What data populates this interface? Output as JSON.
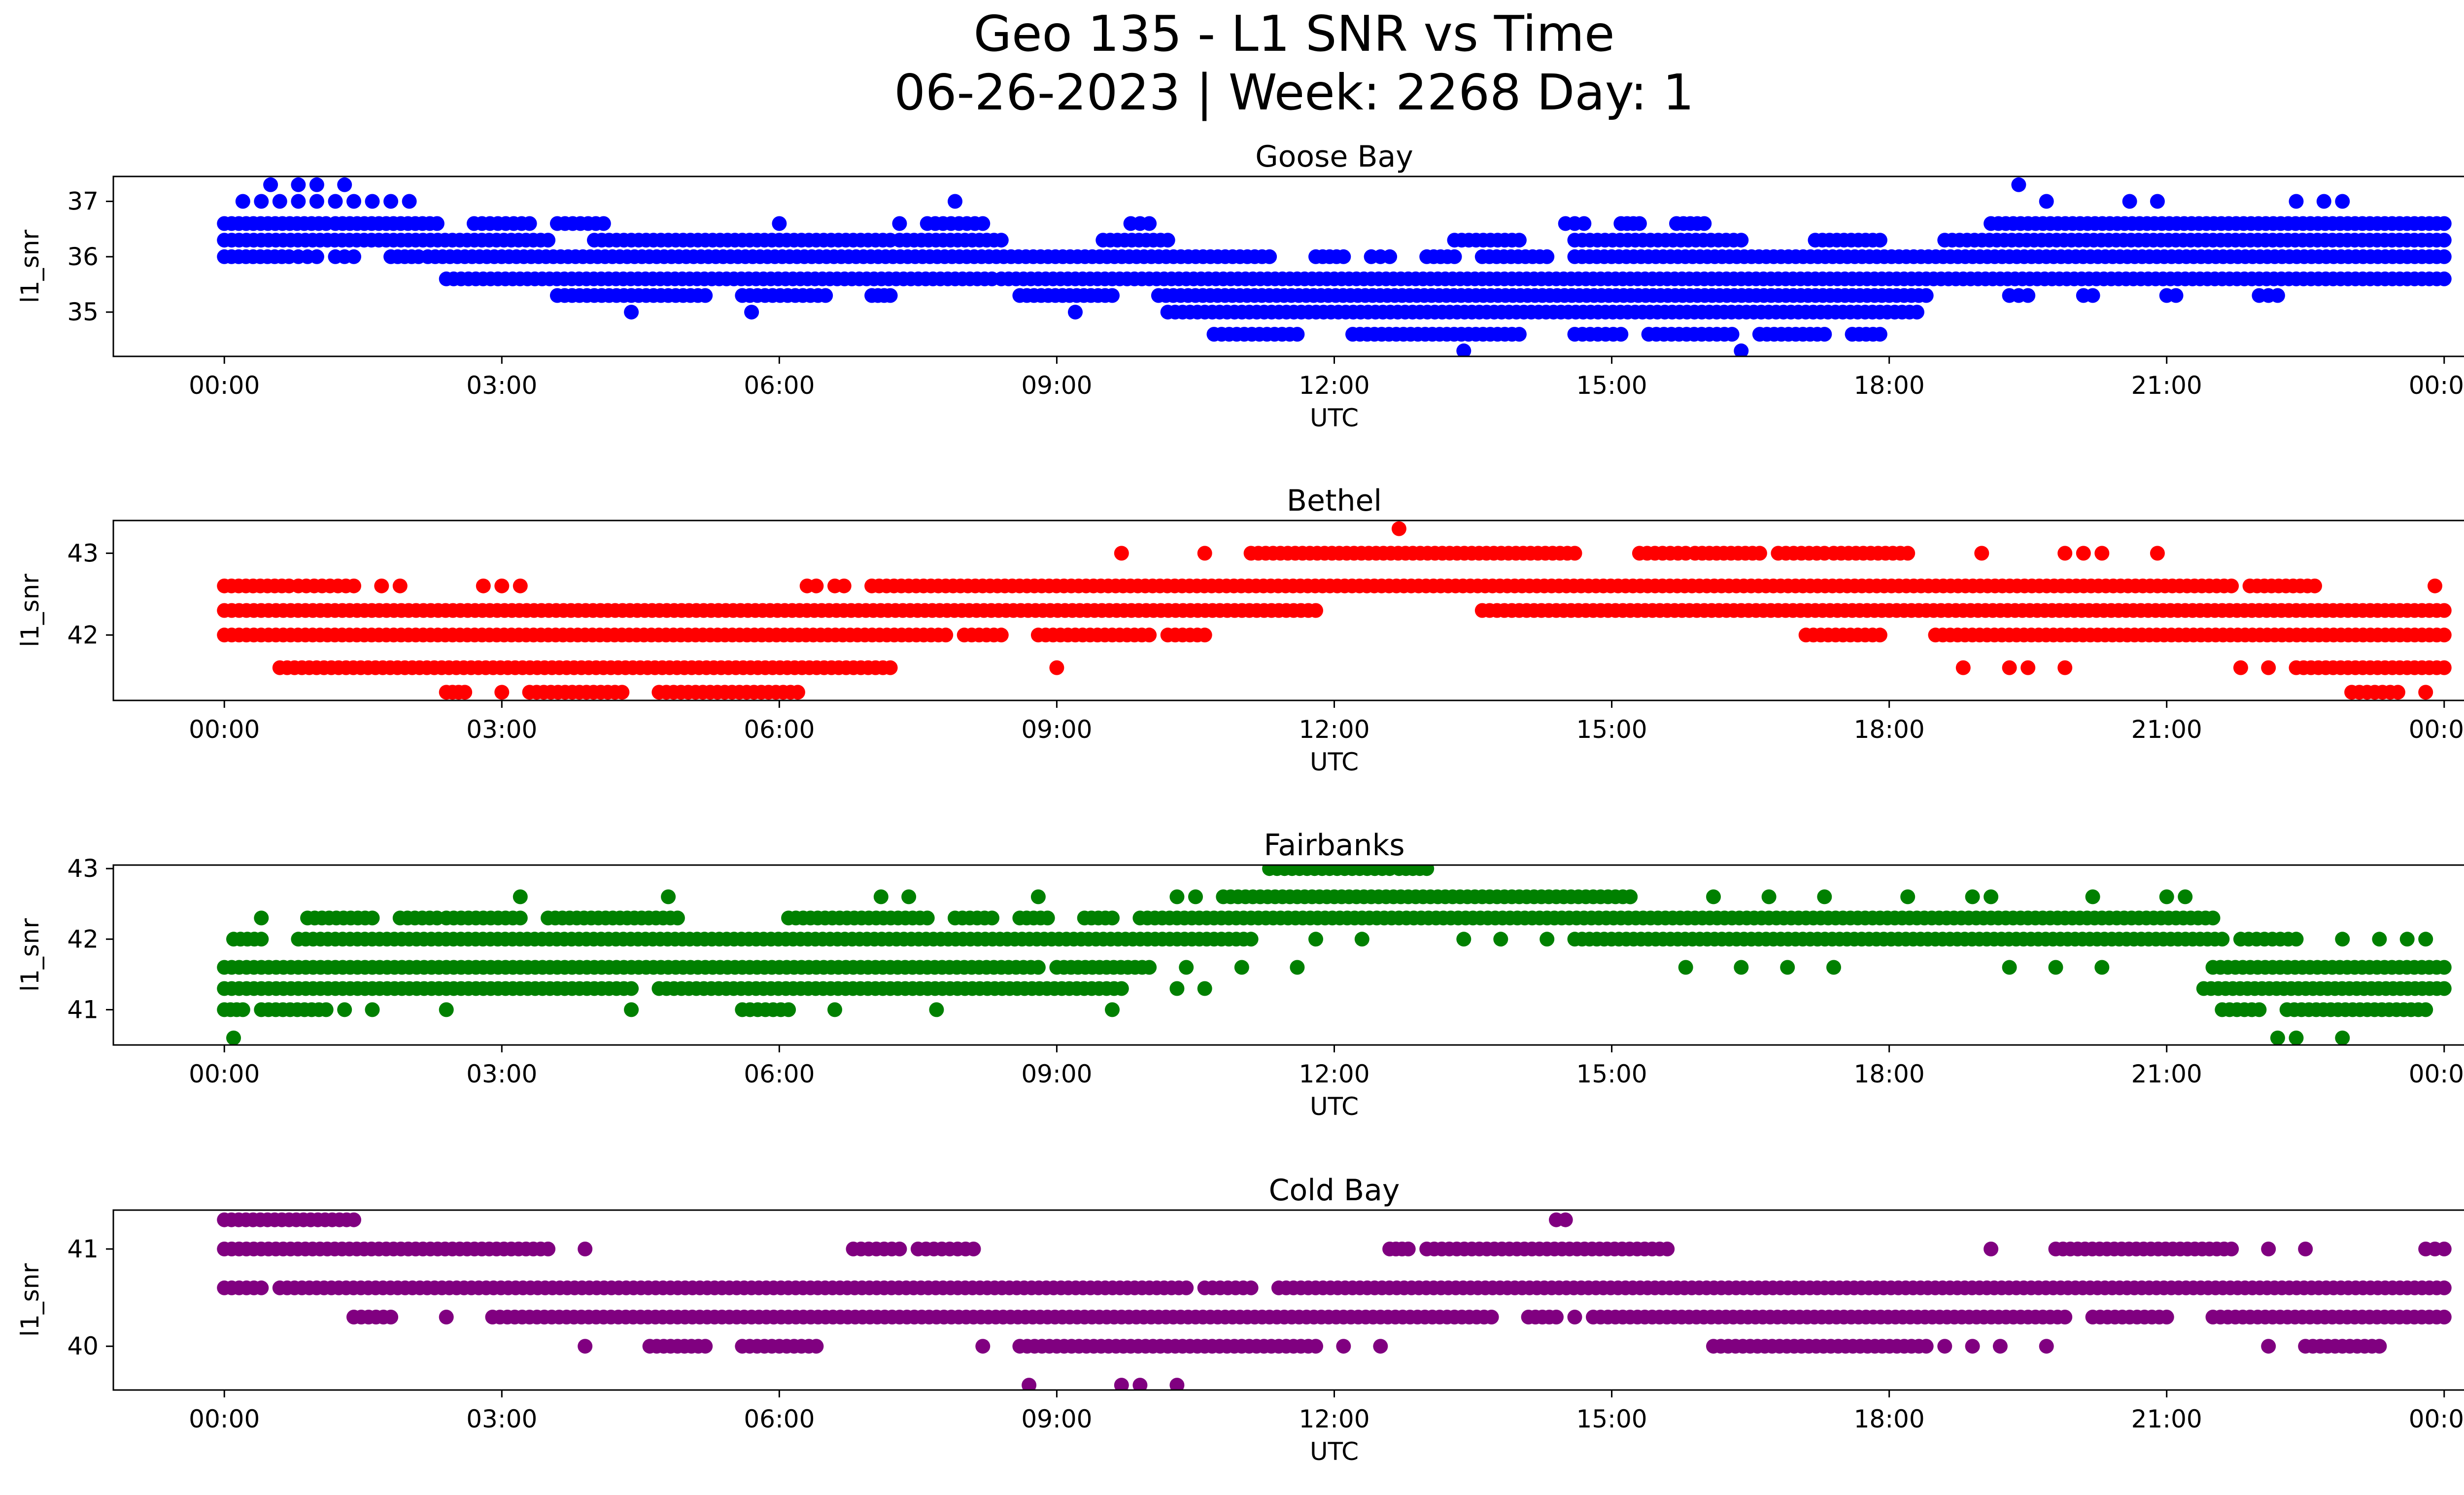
{
  "figure": {
    "title_line1": "Geo 135 - L1 SNR vs Time",
    "title_line2": "06-26-2023 | Week: 2268 Day: 1"
  },
  "chart_data": [
    {
      "type": "scatter",
      "title": "Goose Bay",
      "xlabel": "UTC",
      "ylabel": "l1_snr",
      "color": "#0000ff",
      "x_unit": "hours UTC",
      "xlim": [
        -1.2,
        25.2
      ],
      "ylim": [
        34.2,
        37.45
      ],
      "x_tick_values": [
        0,
        3,
        6,
        9,
        12,
        15,
        18,
        21,
        24
      ],
      "x_tick_labels": [
        "00:00",
        "03:00",
        "06:00",
        "09:00",
        "12:00",
        "15:00",
        "18:00",
        "21:00",
        "00:00"
      ],
      "y_tick_values": [
        35,
        36,
        37
      ],
      "y_tick_labels": [
        "35",
        "36",
        "37"
      ],
      "bands": [
        {
          "y": 36.6,
          "x": [
            0.0,
            1.1,
            1.2,
            2.3,
            2.7,
            3.3,
            3.6,
            4.1,
            7.6,
            8.2,
            9.8,
            10.0,
            14.5,
            14.7,
            15.1,
            15.3,
            15.7,
            16.0,
            19.1,
            24.0
          ]
        },
        {
          "y": 36.3,
          "x": [
            0.0,
            3.5,
            4.0,
            7.2,
            7.3,
            8.4,
            9.5,
            10.2,
            13.3,
            14.0,
            14.6,
            16.4,
            17.2,
            17.9,
            18.6,
            24.0
          ]
        },
        {
          "y": 36.0,
          "x": [
            0.0,
            0.7,
            0.8,
            1.0,
            1.2,
            1.4,
            1.8,
            2.1,
            2.2,
            11.3,
            11.8,
            12.1,
            12.4,
            12.6,
            13.0,
            13.3,
            13.6,
            14.3,
            14.6,
            24.0
          ]
        },
        {
          "y": 35.6,
          "x": [
            2.4,
            8.3,
            8.4,
            24.0
          ]
        },
        {
          "y": 35.3,
          "x": [
            3.6,
            5.2,
            5.6,
            6.5,
            7.0,
            7.2,
            8.6,
            9.6,
            10.1,
            18.4,
            19.3,
            19.5,
            20.1,
            20.2,
            21.0,
            21.1,
            22.0,
            22.2,
            24.0
          ]
        },
        {
          "y": 35.0,
          "x": [
            10.2,
            18.3
          ]
        },
        {
          "y": 34.6,
          "x": [
            10.7,
            11.6,
            12.2,
            14.0,
            14.6,
            15.1,
            15.4,
            16.3,
            16.6,
            17.3,
            17.6,
            17.9
          ]
        }
      ],
      "points": [
        [
          0.5,
          37.3
        ],
        [
          0.8,
          37.3
        ],
        [
          1.0,
          37.3
        ],
        [
          1.3,
          37.3
        ],
        [
          0.2,
          37.0
        ],
        [
          0.4,
          37.0
        ],
        [
          0.6,
          37.0
        ],
        [
          0.8,
          37.0
        ],
        [
          1.0,
          37.0
        ],
        [
          1.2,
          37.0
        ],
        [
          1.4,
          37.0
        ],
        [
          1.6,
          37.0
        ],
        [
          1.8,
          37.0
        ],
        [
          2.0,
          37.0
        ],
        [
          7.9,
          37.0
        ],
        [
          6.0,
          36.6
        ],
        [
          7.3,
          36.6
        ],
        [
          19.4,
          37.3
        ],
        [
          19.7,
          37.0
        ],
        [
          20.6,
          37.0
        ],
        [
          20.9,
          37.0
        ],
        [
          22.4,
          37.0
        ],
        [
          22.7,
          37.0
        ],
        [
          22.9,
          37.0
        ],
        [
          4.4,
          35.0
        ],
        [
          5.7,
          35.0
        ],
        [
          9.2,
          35.0
        ],
        [
          13.4,
          34.3
        ],
        [
          16.4,
          34.3
        ]
      ]
    },
    {
      "type": "scatter",
      "title": "Bethel",
      "xlabel": "UTC",
      "ylabel": "l1_snr",
      "color": "#ff0000",
      "x_unit": "hours UTC",
      "xlim": [
        -1.2,
        25.2
      ],
      "ylim": [
        41.2,
        43.4
      ],
      "x_tick_values": [
        0,
        3,
        6,
        9,
        12,
        15,
        18,
        21,
        24
      ],
      "x_tick_labels": [
        "00:00",
        "03:00",
        "06:00",
        "09:00",
        "12:00",
        "15:00",
        "18:00",
        "21:00",
        "00:00"
      ],
      "y_tick_values": [
        42,
        43
      ],
      "y_tick_labels": [
        "42",
        "43"
      ],
      "bands": [
        {
          "y": 43.0,
          "x": [
            11.1,
            14.6,
            15.3,
            15.8,
            15.9,
            16.6,
            16.8,
            17.3,
            17.4,
            18.2
          ]
        },
        {
          "y": 42.6,
          "x": [
            0.0,
            0.7,
            0.8,
            1.4,
            6.3,
            6.4,
            6.6,
            6.7,
            7.0,
            21.7,
            21.9,
            22.6
          ]
        },
        {
          "y": 42.3,
          "x": [
            0.0,
            11.8,
            13.6,
            24.0
          ]
        },
        {
          "y": 42.0,
          "x": [
            0.0,
            7.8,
            8.0,
            8.4,
            8.8,
            10.0,
            10.2,
            10.6,
            17.1,
            17.9,
            18.5,
            24.0
          ]
        },
        {
          "y": 41.6,
          "x": [
            0.6,
            7.2,
            22.4,
            24.0
          ]
        },
        {
          "y": 41.3,
          "x": [
            2.4,
            2.6,
            3.3,
            4.3,
            4.7,
            6.2,
            23.0,
            23.5
          ]
        }
      ],
      "points": [
        [
          12.7,
          43.3
        ],
        [
          9.7,
          43.0
        ],
        [
          10.6,
          43.0
        ],
        [
          19.0,
          43.0
        ],
        [
          19.9,
          43.0
        ],
        [
          20.1,
          43.0
        ],
        [
          20.3,
          43.0
        ],
        [
          20.9,
          43.0
        ],
        [
          1.7,
          42.6
        ],
        [
          1.9,
          42.6
        ],
        [
          2.8,
          42.6
        ],
        [
          3.0,
          42.6
        ],
        [
          3.2,
          42.6
        ],
        [
          23.9,
          42.6
        ],
        [
          9.0,
          41.6
        ],
        [
          18.8,
          41.6
        ],
        [
          19.3,
          41.6
        ],
        [
          19.5,
          41.6
        ],
        [
          19.9,
          41.6
        ],
        [
          21.8,
          41.6
        ],
        [
          22.1,
          41.6
        ],
        [
          3.0,
          41.3
        ],
        [
          23.8,
          41.3
        ]
      ]
    },
    {
      "type": "scatter",
      "title": "Fairbanks",
      "xlabel": "UTC",
      "ylabel": "l1_snr",
      "color": "#008000",
      "x_unit": "hours UTC",
      "xlim": [
        -1.2,
        25.2
      ],
      "ylim": [
        40.5,
        43.05
      ],
      "x_tick_values": [
        0,
        3,
        6,
        9,
        12,
        15,
        18,
        21,
        24
      ],
      "x_tick_labels": [
        "00:00",
        "03:00",
        "06:00",
        "09:00",
        "12:00",
        "15:00",
        "18:00",
        "21:00",
        "00:00"
      ],
      "y_tick_values": [
        41,
        42,
        43
      ],
      "y_tick_labels": [
        "41",
        "42",
        "43"
      ],
      "bands": [
        {
          "y": 43.0,
          "x": [
            11.3,
            12.6,
            12.7,
            13.0
          ]
        },
        {
          "y": 42.6,
          "x": [
            10.8,
            15.2
          ]
        },
        {
          "y": 42.3,
          "x": [
            0.9,
            1.6,
            1.9,
            2.3,
            2.4,
            3.2,
            3.5,
            4.9,
            6.1,
            7.6,
            7.9,
            8.3,
            8.6,
            8.9,
            9.3,
            9.6,
            9.9,
            21.5
          ]
        },
        {
          "y": 42.0,
          "x": [
            0.1,
            0.4,
            0.8,
            11.1,
            14.6,
            21.6,
            21.8,
            22.4
          ]
        },
        {
          "y": 41.6,
          "x": [
            0.0,
            8.8,
            9.0,
            10.0,
            21.5,
            24.0
          ]
        },
        {
          "y": 41.3,
          "x": [
            0.0,
            4.4,
            4.7,
            9.7,
            21.4,
            24.0
          ]
        },
        {
          "y": 41.0,
          "x": [
            0.0,
            0.2,
            0.4,
            1.1,
            5.6,
            6.1,
            21.6,
            22.0,
            22.3,
            23.8
          ]
        }
      ],
      "points": [
        [
          10.3,
          42.6
        ],
        [
          10.5,
          42.6
        ],
        [
          15.2,
          42.6
        ],
        [
          16.1,
          42.6
        ],
        [
          16.7,
          42.6
        ],
        [
          17.3,
          42.6
        ],
        [
          18.2,
          42.6
        ],
        [
          18.9,
          42.6
        ],
        [
          19.1,
          42.6
        ],
        [
          20.2,
          42.6
        ],
        [
          21.0,
          42.6
        ],
        [
          21.2,
          42.6
        ],
        [
          3.2,
          42.6
        ],
        [
          4.8,
          42.6
        ],
        [
          7.1,
          42.6
        ],
        [
          7.4,
          42.6
        ],
        [
          8.8,
          42.6
        ],
        [
          0.4,
          42.3
        ],
        [
          11.8,
          42.0
        ],
        [
          12.3,
          42.0
        ],
        [
          13.4,
          42.0
        ],
        [
          13.8,
          42.0
        ],
        [
          14.3,
          42.0
        ],
        [
          22.9,
          42.0
        ],
        [
          23.3,
          42.0
        ],
        [
          23.6,
          42.0
        ],
        [
          23.8,
          42.0
        ],
        [
          10.4,
          41.6
        ],
        [
          11.0,
          41.6
        ],
        [
          11.6,
          41.6
        ],
        [
          15.8,
          41.6
        ],
        [
          16.4,
          41.6
        ],
        [
          16.9,
          41.6
        ],
        [
          17.4,
          41.6
        ],
        [
          19.3,
          41.6
        ],
        [
          19.8,
          41.6
        ],
        [
          20.3,
          41.6
        ],
        [
          10.3,
          41.3
        ],
        [
          10.6,
          41.3
        ],
        [
          1.3,
          41.0
        ],
        [
          1.6,
          41.0
        ],
        [
          2.4,
          41.0
        ],
        [
          4.4,
          41.0
        ],
        [
          6.6,
          41.0
        ],
        [
          7.7,
          41.0
        ],
        [
          9.6,
          41.0
        ],
        [
          0.1,
          40.6
        ],
        [
          22.2,
          40.6
        ],
        [
          22.4,
          40.6
        ],
        [
          22.9,
          40.6
        ]
      ]
    },
    {
      "type": "scatter",
      "title": "Cold Bay",
      "xlabel": "UTC",
      "ylabel": "l1_snr",
      "color": "#800080",
      "x_unit": "hours UTC",
      "xlim": [
        -1.2,
        25.2
      ],
      "ylim": [
        39.55,
        41.4
      ],
      "x_tick_values": [
        0,
        3,
        6,
        9,
        12,
        15,
        18,
        21,
        24
      ],
      "x_tick_labels": [
        "00:00",
        "03:00",
        "06:00",
        "09:00",
        "12:00",
        "15:00",
        "18:00",
        "21:00",
        "00:00"
      ],
      "y_tick_values": [
        40,
        41
      ],
      "y_tick_labels": [
        "40",
        "41"
      ],
      "bands": [
        {
          "y": 41.3,
          "x": [
            0.0,
            1.4
          ]
        },
        {
          "y": 41.0,
          "x": [
            0.0,
            3.5,
            6.8,
            7.3,
            7.5,
            8.1,
            12.6,
            12.8,
            13.0,
            15.6,
            19.8,
            21.7,
            23.8,
            24.0
          ]
        },
        {
          "y": 40.6,
          "x": [
            0.0,
            0.4,
            0.6,
            10.4,
            10.6,
            11.1,
            11.4,
            24.0
          ]
        },
        {
          "y": 40.3,
          "x": [
            1.4,
            1.8,
            2.9,
            13.7,
            14.1,
            14.4,
            14.8,
            19.9,
            20.2,
            21.0,
            21.5,
            24.0
          ]
        },
        {
          "y": 40.0,
          "x": [
            4.6,
            5.2,
            5.6,
            6.4,
            8.6,
            11.8,
            16.1,
            18.4,
            22.5,
            23.3
          ]
        }
      ],
      "points": [
        [
          14.4,
          41.3
        ],
        [
          14.5,
          41.3
        ],
        [
          3.9,
          41.0
        ],
        [
          22.1,
          41.0
        ],
        [
          22.5,
          41.0
        ],
        [
          19.1,
          41.0
        ],
        [
          2.4,
          40.3
        ],
        [
          21.9,
          40.3
        ],
        [
          14.6,
          40.3
        ],
        [
          3.9,
          40.0
        ],
        [
          8.2,
          40.0
        ],
        [
          12.1,
          40.0
        ],
        [
          12.5,
          40.0
        ],
        [
          18.6,
          40.0
        ],
        [
          18.9,
          40.0
        ],
        [
          19.2,
          40.0
        ],
        [
          19.7,
          40.0
        ],
        [
          22.1,
          40.0
        ],
        [
          8.7,
          39.6
        ],
        [
          9.7,
          39.6
        ],
        [
          9.9,
          39.6
        ],
        [
          10.3,
          39.6
        ]
      ]
    }
  ]
}
